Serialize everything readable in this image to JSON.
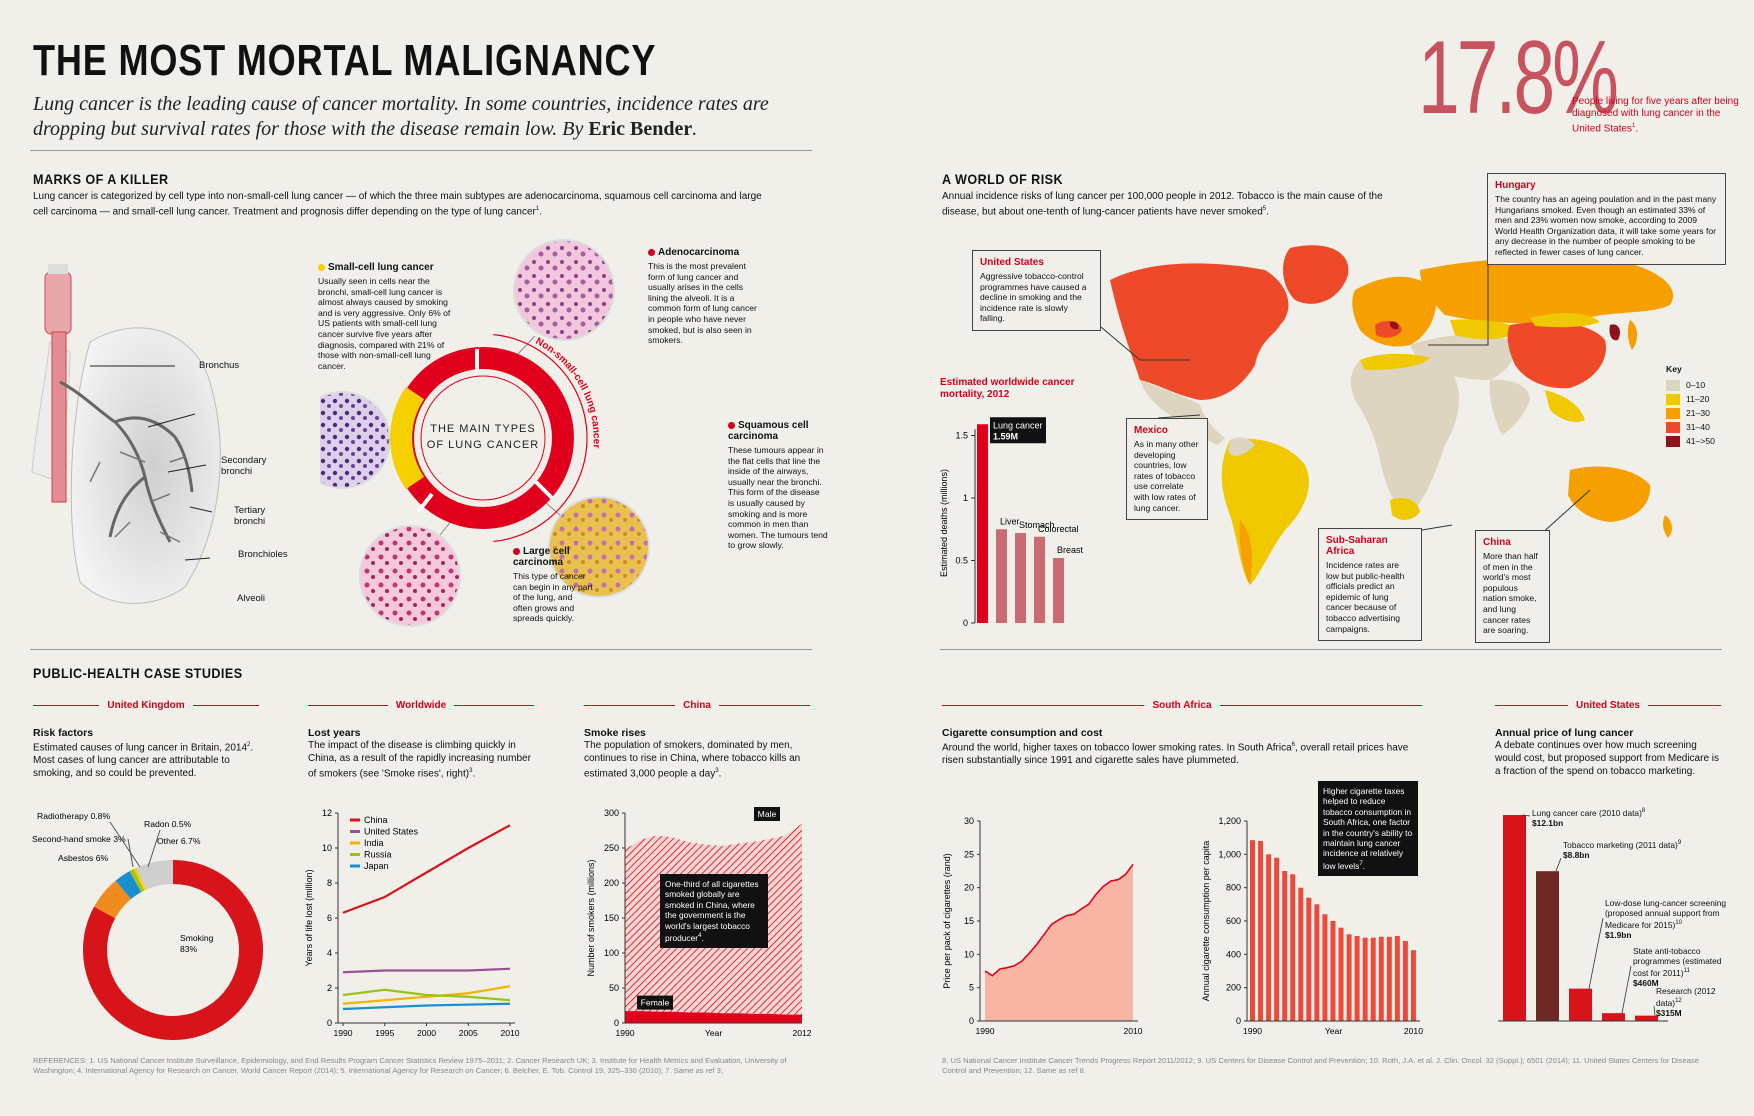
{
  "header": {
    "title": "THE MOST MORTAL MALIGNANCY",
    "intro": "Lung cancer is the leading cause of cancer mortality. In some countries, incidence rates are dropping but survival rates for those with the disease remain low. By ",
    "author": "Eric Bender",
    "intro_end": ".",
    "stat": "17.8%",
    "stat_note": "People living for five years after being diagnosed with lung cancer in the United States",
    "stat_note_ref": "1",
    "stat_note_end": "."
  },
  "marks": {
    "title": "MARKS OF A KILLER",
    "text": "Lung cancer is categorized by cell type into non-small-cell lung cancer — of which the three main subtypes are adenocarcinoma, squamous cell carcinoma and large cell carcinoma — and small-cell lung cancer. Treatment and prognosis differ depending on the type of lung cancer",
    "text_ref": "1",
    "text_end": ".",
    "lung_labels": [
      "Bronchus",
      "Secondary bronchi",
      "Tertiary bronchi",
      "Bronchioles",
      "Alveoli"
    ],
    "ring_title_1": "THE MAIN TYPES",
    "ring_title_2": "OF LUNG CANCER",
    "ring_arc_label": "Non-small-cell lung cancer",
    "types": {
      "small": {
        "name": "Small-cell lung cancer",
        "text": "Usually seen in cells near the bronchi, small-cell lung cancer is almost always caused by smoking and is very aggressive. Only 6% of US patients with small-cell lung cancer survive five years after diagnosis, compared with 21% of those with non-small-cell lung cancer."
      },
      "adeno": {
        "name": "Adenocarcinoma",
        "text": "This is the most prevalent form of lung cancer and usually arises in the cells lining the alveoli. It is a common form of lung cancer in people who have never smoked, but is also seen in smokers."
      },
      "squamous": {
        "name": "Squamous cell carcinoma",
        "text": "These tumours appear in the flat cells that line the inside of the airways, usually near the bronchi. This form of the disease is usually caused by smoking and is more common in men than women. The tumours tend to grow slowly."
      },
      "large": {
        "name": "Large cell carcinoma",
        "text": "This type of cancer can begin in any part of the lung, and often grows and spreads quickly."
      }
    }
  },
  "world": {
    "title": "A WORLD OF RISK",
    "text": "Annual incidence risks of lung cancer per 100,000 people in 2012. Tobacco is the main cause of the disease, but about one-tenth of lung-cancer patients have never smoked",
    "text_ref": "5",
    "text_end": ".",
    "key_title": "Key",
    "key": [
      {
        "label": "0–10",
        "color": "#ddd5c0"
      },
      {
        "label": "11–20",
        "color": "#f0c800"
      },
      {
        "label": "21–30",
        "color": "#f5a000"
      },
      {
        "label": "31–40",
        "color": "#ee4a2a"
      },
      {
        "label": "41–>50",
        "color": "#8e1219"
      }
    ],
    "callouts": {
      "us": {
        "title": "United States",
        "text": "Aggressive tobacco-control programmes have caused a decline in smoking and the incidence rate is slowly falling."
      },
      "hungary": {
        "title": "Hungary",
        "text": "The country has an ageing poulation and in the past many Hungarians smoked. Even though an estimated 33% of men and 23% women now smoke, according to 2009 World Health Organization data, it will take some years for any decrease in the number of people smoking to be reflected in fewer cases of lung cancer."
      },
      "mexico": {
        "title": "Mexico",
        "text": "As in many other developing countries, low rates of tobacco use correlate with low rates of lung cancer."
      },
      "ssa": {
        "title": "Sub-Saharan Africa",
        "text": "Incidence rates are low but public-health officials predict an epidemic of lung cancer because of tobacco advertising campaigns."
      },
      "china": {
        "title": "China",
        "text": "More than half of men in the world's most populous nation smoke, and lung cancer rates are soaring."
      }
    }
  },
  "chart_data": [
    {
      "id": "mortality",
      "type": "bar",
      "title": "Estimated worldwide cancer mortality, 2012",
      "ylabel": "Estimated deaths (millions)",
      "ylim": [
        0,
        1.6
      ],
      "yticks": [
        "0",
        "0.5",
        "1",
        "1.5"
      ],
      "categories": [
        "Lung cancer",
        "Liver",
        "Stomach",
        "Colorectal",
        "Breast"
      ],
      "values": [
        1.59,
        0.75,
        0.72,
        0.69,
        0.52
      ],
      "annotation": "1.59M"
    },
    {
      "id": "risk",
      "type": "pie",
      "heading": "Risk factors",
      "text": "Estimated causes of lung cancer in Britain, 2014",
      "text_ref": "2",
      "text2": ". Most cases of lung cancer are attributable to smoking, and so could be prevented.",
      "slices": [
        {
          "name": "Smoking",
          "value": 83,
          "label": "83%",
          "color": "#d7141a"
        },
        {
          "name": "Asbestos",
          "value": 6,
          "label": "6%",
          "color": "#f08c1e"
        },
        {
          "name": "Second-hand smoke",
          "value": 3,
          "label": "3%",
          "color": "#1a8fd0"
        },
        {
          "name": "Radiotherapy",
          "value": 0.8,
          "label": "0.8%",
          "color": "#a4c21c"
        },
        {
          "name": "Radon",
          "value": 0.5,
          "label": "0.5%",
          "color": "#f5cf00"
        },
        {
          "name": "Other",
          "value": 6.7,
          "label": "6.7%",
          "color": "#cfcfcf"
        }
      ]
    },
    {
      "id": "lostyears",
      "type": "line",
      "heading": "Lost years",
      "text": "The impact of the disease is climbing quickly in China, as a result of the rapidly increasing number of smokers (see 'Smoke rises', right)",
      "text_ref": "3",
      "text_end": ".",
      "ylabel": "Years of life lost (million)",
      "ylim": [
        0,
        12
      ],
      "yticks": [
        "0",
        "2",
        "4",
        "6",
        "8",
        "10",
        "12"
      ],
      "xticks": [
        "1990",
        "1995",
        "2000",
        "2005",
        "2010"
      ],
      "x": [
        1990,
        1995,
        2000,
        2005,
        2010
      ],
      "series": [
        {
          "name": "China",
          "color": "#d7141a",
          "values": [
            6.3,
            7.2,
            8.6,
            10.0,
            11.3
          ]
        },
        {
          "name": "United States",
          "color": "#9b4f96",
          "values": [
            2.9,
            3.0,
            3.0,
            3.0,
            3.1
          ]
        },
        {
          "name": "India",
          "color": "#f2b400",
          "values": [
            1.1,
            1.3,
            1.5,
            1.7,
            2.1
          ]
        },
        {
          "name": "Russia",
          "color": "#9ac11b",
          "values": [
            1.6,
            1.9,
            1.6,
            1.5,
            1.3
          ]
        },
        {
          "name": "Japan",
          "color": "#1a8fd0",
          "values": [
            0.8,
            0.9,
            1.0,
            1.05,
            1.1
          ]
        }
      ]
    },
    {
      "id": "smoke",
      "type": "area",
      "heading": "Smoke rises",
      "text": "The population of smokers, dominated by men, continues to rise in China, where tobacco kills an estimated 3,000 people a day",
      "text_ref": "3",
      "text_end": ".",
      "ylabel": "Number of smokers (millions)",
      "xlabel": "Year",
      "ylim": [
        0,
        300
      ],
      "yticks": [
        "0",
        "50",
        "100",
        "150",
        "200",
        "250",
        "300"
      ],
      "xticks": [
        "1990",
        "2012"
      ],
      "x": [
        1990,
        1992,
        1994,
        1996,
        1998,
        2000,
        2002,
        2004,
        2006,
        2008,
        2010,
        2012
      ],
      "series": [
        {
          "name": "Female",
          "values": [
            17,
            17,
            16,
            16,
            15,
            15,
            14,
            14,
            13,
            13,
            12,
            12
          ]
        },
        {
          "name": "Male",
          "values": [
            248,
            262,
            268,
            265,
            258,
            255,
            253,
            256,
            259,
            263,
            268,
            285
          ]
        }
      ],
      "annotation": "One-third of all cigarettes smoked globally are smoked in China, where the government is the world's largest tobacco producer",
      "annotation_ref": "4",
      "annotation_end": "."
    },
    {
      "id": "price",
      "type": "area",
      "heading": "Cigarette consumption and cost",
      "text": "Around the world, higher taxes on tobacco lower smoking rates. In South Africa",
      "text_ref": "6",
      "text2": ", overall retail prices have risen substantially since 1991 and cigarette sales have plummeted.",
      "ylabel": "Price per pack of cigarettes (rand)",
      "ylim": [
        0,
        30
      ],
      "yticks": [
        "0",
        "5",
        "10",
        "15",
        "20",
        "25",
        "30"
      ],
      "xticks": [
        "1990",
        "2010"
      ],
      "x": [
        1990,
        1991,
        1992,
        1993,
        1994,
        1995,
        1996,
        1997,
        1998,
        1999,
        2000,
        2001,
        2002,
        2003,
        2004,
        2005,
        2006,
        2007,
        2008,
        2009,
        2010
      ],
      "values": [
        7.5,
        6.8,
        7.8,
        8.0,
        8.3,
        9.0,
        10.2,
        11.5,
        13.0,
        14.5,
        15.2,
        15.8,
        16.0,
        16.8,
        17.5,
        19.0,
        20.2,
        21.0,
        21.2,
        22.0,
        23.5
      ]
    },
    {
      "id": "consumption",
      "type": "bar",
      "ylabel": "Annual cigarette consumption per capita",
      "xlabel": "Year",
      "ylim": [
        0,
        1200
      ],
      "yticks": [
        "0",
        "200",
        "400",
        "600",
        "800",
        "1,000",
        "1,200"
      ],
      "xticks": [
        "1990",
        "2010"
      ],
      "x": [
        1990,
        1991,
        1992,
        1993,
        1994,
        1995,
        1996,
        1997,
        1998,
        1999,
        2000,
        2001,
        2002,
        2003,
        2004,
        2005,
        2006,
        2007,
        2008,
        2009,
        2010
      ],
      "values": [
        1085,
        1080,
        1000,
        980,
        900,
        880,
        800,
        740,
        700,
        640,
        600,
        560,
        520,
        510,
        500,
        500,
        505,
        505,
        510,
        480,
        425
      ],
      "annotation": "Higher cigarette taxes helped to reduce tobacco consumption in South Africa, one factor in the country's ability to maintain lung cancer incidence at relatively low levels",
      "annotation_ref": "7",
      "annotation_end": "."
    },
    {
      "id": "funding",
      "type": "bar",
      "heading": "Annual price of lung cancer",
      "text": "A debate continues over how much screening would cost, but proposed support from Medicare is a fraction of the spend on tobacco marketing.",
      "categories": [
        "Lung cancer care (2010 data)",
        "Tobacco marketing (2011 data)",
        "Low-dose lung-cancer screening (proposed annual support from Medicare for 2015)",
        "State anti-tobacco programmes (estimated cost for 2011)",
        "Research (2012 data)"
      ],
      "refs": [
        "8",
        "9",
        "10",
        "11",
        "12"
      ],
      "values": [
        12.1,
        8.8,
        1.9,
        0.46,
        0.315
      ],
      "value_labels": [
        "$12.1bn",
        "$8.8bn",
        "$1.9bn",
        "$460M",
        "$315M"
      ],
      "colors": [
        "#d7141a",
        "#6b2a26",
        "#d7141a",
        "#d7141a",
        "#d7141a"
      ]
    }
  ],
  "case": {
    "title": "PUBLIC-HEALTH CASE STUDIES",
    "tags": [
      "United Kingdom",
      "Worldwide",
      "China",
      "South Africa",
      "United States"
    ]
  },
  "refs": {
    "left": "REFERENCES: 1. US National Cancer Institute Surveillance, Epidemiology, and End Results Program Cancer Statistics Review 1975–2011; 2. Cancer Research UK; 3. Institute for Health Metrics and Evaluation, University of Washington; 4. International Agency for Research on Cancer, World Cancer Report (2014); 5. International Agency for Research on Cancer; 6. Belcher, E. Tob. Control 19, 325–330 (2010); 7. Same as ref 3;",
    "right": "8. US National Cancer Institute Cancer Trends Progress Report 2011/2012; 9. US Centers for Disease Control and Prevention; 10. Roth, J.A. et al. J. Clin. Oncol. 32 (Suppl.); 6501 (2014); 11. United States Centers for Disease Control and Prevention; 12. Same as ref 8."
  }
}
